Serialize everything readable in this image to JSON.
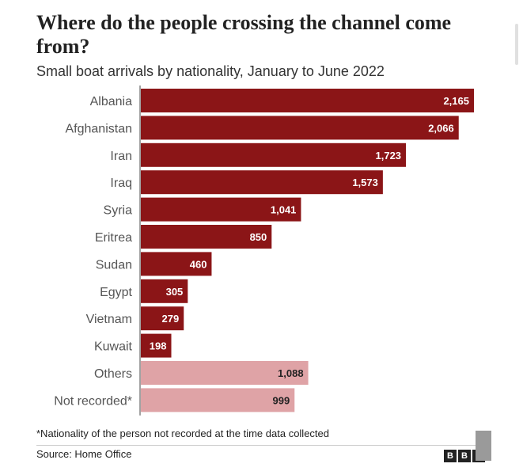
{
  "title": "Where do the people crossing the channel come from?",
  "subtitle": "Small boat arrivals by nationality, January to June 2022",
  "chart_data": {
    "type": "bar",
    "orientation": "horizontal",
    "title": "Where do the people crossing the channel come from?",
    "subtitle": "Small boat arrivals by nationality, January to June 2022",
    "categories": [
      "Albania",
      "Afghanistan",
      "Iran",
      "Iraq",
      "Syria",
      "Eritrea",
      "Sudan",
      "Egypt",
      "Vietnam",
      "Kuwait",
      "Others",
      "Not recorded*"
    ],
    "values": [
      2165,
      2066,
      1723,
      1573,
      1041,
      850,
      460,
      305,
      279,
      198,
      1088,
      999
    ],
    "value_labels": [
      "2,165",
      "2,066",
      "1,723",
      "1,573",
      "1,041",
      "850",
      "460",
      "305",
      "279",
      "198",
      "1,088",
      "999"
    ],
    "highlight_group": [
      "main",
      "main",
      "main",
      "main",
      "main",
      "main",
      "main",
      "main",
      "main",
      "main",
      "other",
      "other"
    ],
    "colors": {
      "main": "#8b1517",
      "other": "#dfa3a6",
      "main_label": "#ffffff",
      "other_label": "#222222"
    },
    "xlim": [
      0,
      2165
    ]
  },
  "footnote": "*Nationality of the person not recorded at the time data collected",
  "source": "Source: Home Office",
  "logo": [
    "B",
    "B",
    "C"
  ]
}
